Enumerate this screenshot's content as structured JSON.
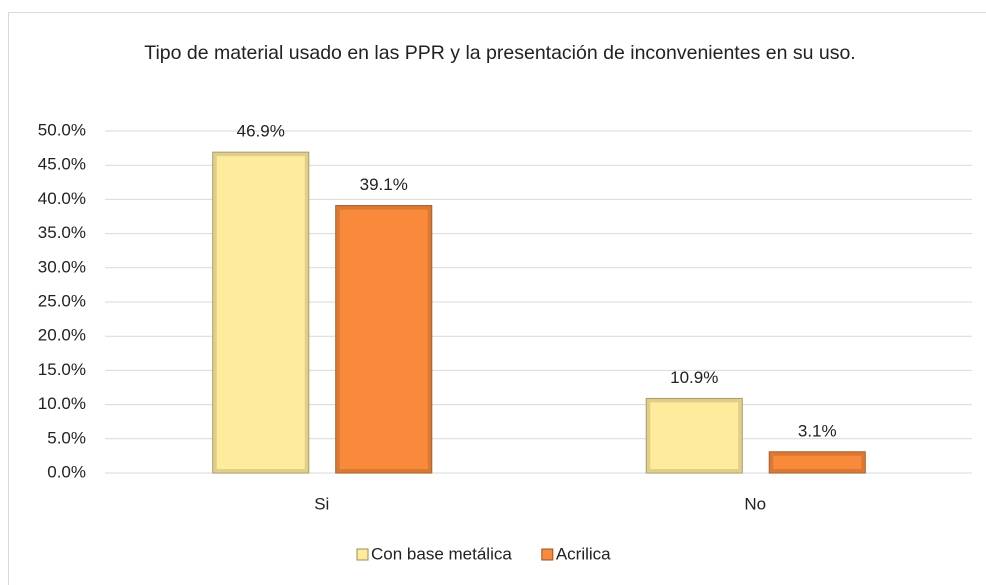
{
  "chart_data": {
    "type": "bar",
    "title": "Tipo de material usado en las PPR y la presentación de inconvenientes en su uso.",
    "categories": [
      "Si",
      "No"
    ],
    "series": [
      {
        "name": "Con base metálica",
        "color": "#ffeb9c",
        "values": [
          46.9,
          10.9
        ],
        "value_labels": [
          "46.9%",
          "10.9%"
        ]
      },
      {
        "name": "Acrilica",
        "color": "#f98a3b",
        "values": [
          39.1,
          3.1
        ],
        "value_labels": [
          "39.1%",
          "3.1%"
        ]
      }
    ],
    "ylim": [
      0,
      50
    ],
    "yticks": [
      {
        "value": 0,
        "label": "0.0%"
      },
      {
        "value": 5,
        "label": "5.0%"
      },
      {
        "value": 10,
        "label": "10.0%"
      },
      {
        "value": 15,
        "label": "15.0%"
      },
      {
        "value": 20,
        "label": "20.0%"
      },
      {
        "value": 25,
        "label": "25.0%"
      },
      {
        "value": 30,
        "label": "30.0%"
      },
      {
        "value": 35,
        "label": "35.0%"
      },
      {
        "value": 40,
        "label": "40.0%"
      },
      {
        "value": 45,
        "label": "45.0%"
      },
      {
        "value": 50,
        "label": "50.0%"
      }
    ],
    "grid": true,
    "legend": "bottom"
  }
}
